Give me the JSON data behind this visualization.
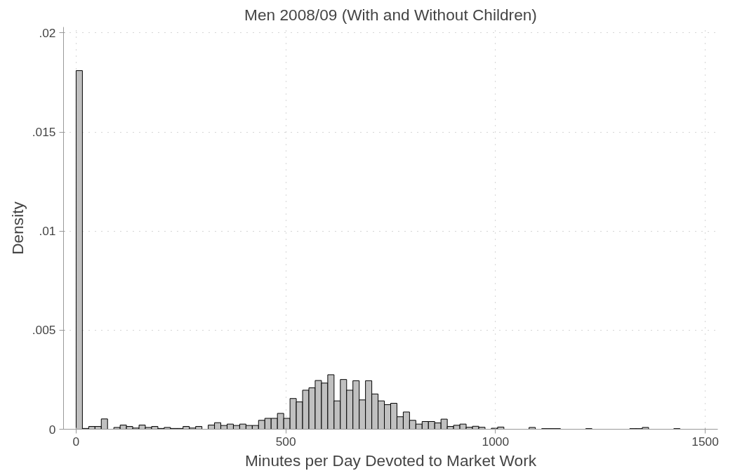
{
  "chart_data": {
    "type": "histogram",
    "title": "Men 2008/09 (With and Without Children)",
    "xlabel": "Minutes per Day Devoted to Market Work",
    "ylabel": "Density",
    "bins": [
      0,
      15,
      30,
      45,
      60,
      75,
      90,
      105,
      120,
      135,
      150,
      165,
      180,
      195,
      210,
      225,
      240,
      255,
      270,
      285,
      300,
      315,
      330,
      345,
      360,
      375,
      390,
      405,
      420,
      435,
      450,
      465,
      480,
      495,
      510,
      525,
      540,
      555,
      570,
      585,
      600,
      615,
      630,
      645,
      660,
      675,
      690,
      705,
      720,
      735,
      750,
      765,
      780,
      795,
      810,
      825,
      840,
      855,
      870,
      885,
      900,
      915,
      930,
      945,
      960,
      975,
      990,
      1005,
      1020,
      1035,
      1050,
      1065,
      1080,
      1095,
      1110,
      1125,
      1140,
      1155,
      1170,
      1185,
      1200,
      1215,
      1230,
      1245,
      1260,
      1275,
      1290,
      1305,
      1320,
      1335,
      1350,
      1365,
      1380,
      1395,
      1410,
      1425,
      1440
    ],
    "values": [
      0.0181,
      4e-05,
      0.00014,
      0.00014,
      0.00052,
      0,
      9e-05,
      0.00021,
      0.00014,
      6e-05,
      0.00021,
      9e-05,
      0.00014,
      4e-05,
      9e-05,
      4e-05,
      4e-05,
      0.00014,
      6e-05,
      0.00014,
      0,
      0.00021,
      0.00033,
      0.00019,
      0.00026,
      0.00019,
      0.00026,
      0.00019,
      0.00019,
      0.00045,
      0.00055,
      0.00055,
      0.0008,
      0.00055,
      0.00155,
      0.00138,
      0.00197,
      0.00209,
      0.00246,
      0.00233,
      0.00275,
      0.00143,
      0.00251,
      0.00197,
      0.00245,
      0.00148,
      0.00245,
      0.00178,
      0.00143,
      0.00124,
      0.00131,
      0.00063,
      0.00087,
      0.00045,
      0.00026,
      0.00039,
      0.00039,
      0.00032,
      0.00051,
      0.00014,
      0.0002,
      0.00026,
      0.0001,
      0.00015,
      0.0001,
      0,
      5e-05,
      0.00011,
      0,
      0,
      0,
      0,
      9e-05,
      0,
      3e-05,
      3e-05,
      3e-05,
      0,
      0,
      0,
      0,
      3e-05,
      0,
      0,
      0,
      0,
      0,
      0,
      3e-05,
      3e-05,
      9e-05,
      0,
      0,
      0,
      0,
      3e-05
    ],
    "color": "#c0c0c0",
    "xlim": [
      -30,
      1530
    ],
    "xticks": [
      0,
      500,
      1000,
      1500
    ],
    "ylim": [
      0,
      0.0203
    ],
    "yticks": [
      0,
      {
        "value": 0.005,
        "label": ".005"
      },
      {
        "value": 0.01,
        "label": ".01"
      },
      {
        "value": 0.015,
        "label": ".015"
      },
      {
        "value": 0.02,
        "label": ".02"
      }
    ],
    "grid": true
  }
}
